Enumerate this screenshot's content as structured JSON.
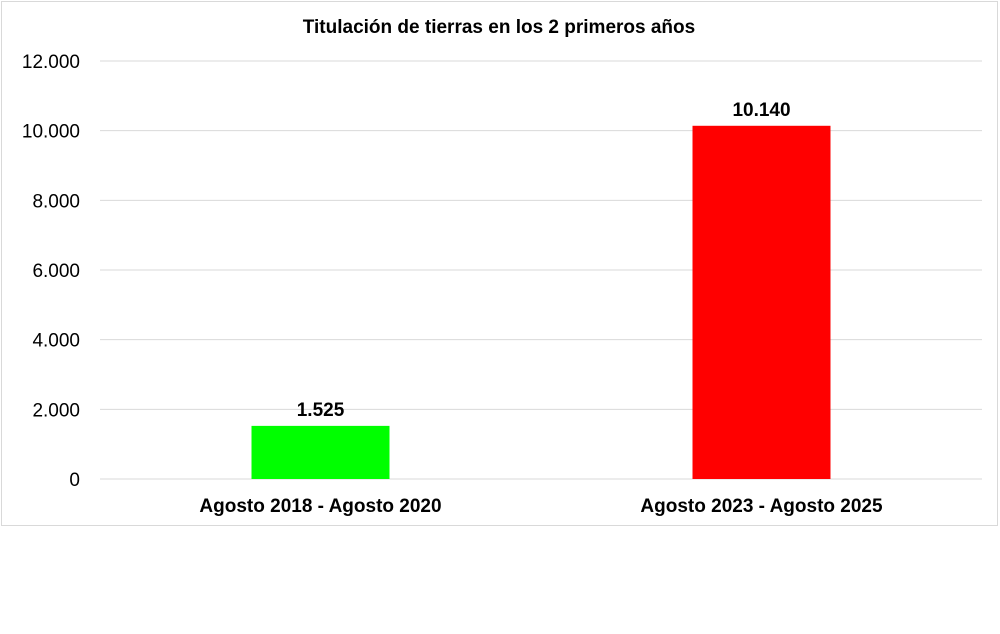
{
  "chart_data": {
    "type": "bar",
    "title": "Titulación de tierras en los 2 primeros años",
    "xlabel": "",
    "ylabel": "",
    "categories": [
      "Agosto 2018 - Agosto 2020",
      "Agosto 2023 - Agosto 2025"
    ],
    "values": [
      1525,
      10140
    ],
    "value_labels": [
      "1.525",
      "10.140"
    ],
    "bar_colors": [
      "#00ff00",
      "#ff0000"
    ],
    "ylim": [
      0,
      12000
    ],
    "yticks": [
      0,
      2000,
      4000,
      6000,
      8000,
      10000,
      12000
    ],
    "ytick_labels": [
      "0",
      "2.000",
      "4.000",
      "6.000",
      "8.000",
      "10.000",
      "12.000"
    ],
    "grid": true,
    "legend": "none"
  }
}
